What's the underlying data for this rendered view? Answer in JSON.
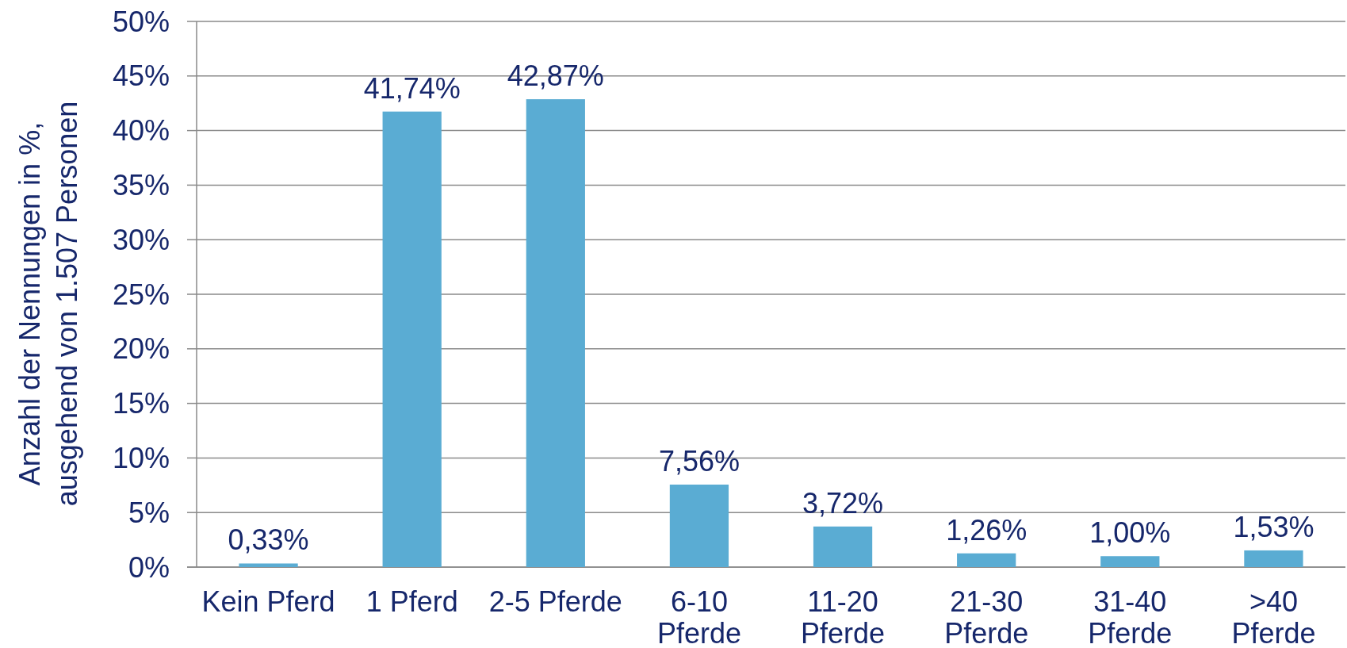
{
  "chart_data": {
    "type": "bar",
    "ylabel": "Anzahl der Nennungen in %, ausgehend von 1.507 Personen",
    "categories": [
      "Kein Pferd",
      "1 Pferd",
      "2-5 Pferde",
      "6-10 Pferde",
      "11-20 Pferde",
      "21-30 Pferde",
      "31-40 Pferde",
      ">40 Pferde"
    ],
    "values": [
      0.33,
      41.74,
      42.87,
      7.56,
      3.72,
      1.26,
      1.0,
      1.53
    ],
    "value_labels": [
      "0,33%",
      "41,74%",
      "42,87%",
      "7,56%",
      "3,72%",
      "1,26%",
      "1,00%",
      "1,53%"
    ],
    "color": "#5aacd3",
    "ylim": [
      0,
      50
    ],
    "yticks": [
      {
        "value": 0,
        "label": "0%"
      },
      {
        "value": 5,
        "label": "5%"
      },
      {
        "value": 10,
        "label": "10%"
      },
      {
        "value": 15,
        "label": "15%"
      },
      {
        "value": 20,
        "label": "20%"
      },
      {
        "value": 25,
        "label": "25%"
      },
      {
        "value": 30,
        "label": "30%"
      },
      {
        "value": 35,
        "label": "35%"
      },
      {
        "value": 40,
        "label": "40%"
      },
      {
        "value": 45,
        "label": "45%"
      },
      {
        "value": 50,
        "label": "50%"
      }
    ],
    "grid": "y"
  }
}
